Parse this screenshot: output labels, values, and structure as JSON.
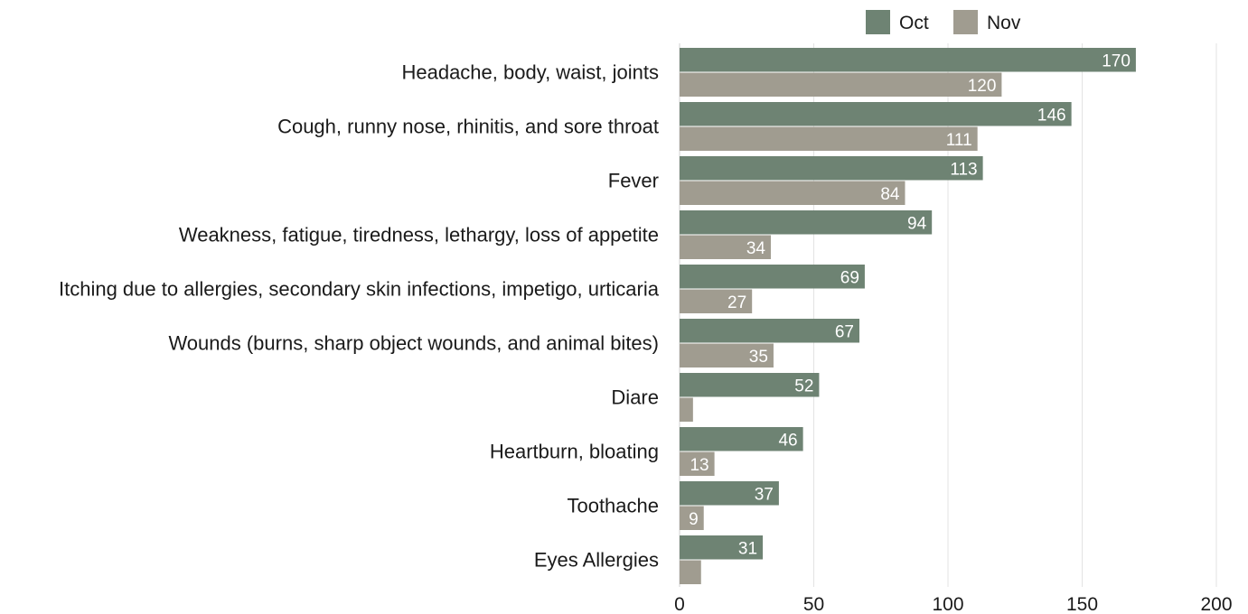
{
  "chart_data": {
    "type": "bar",
    "orientation": "horizontal",
    "categories": [
      "Headache, body, waist, joints",
      "Cough, runny nose, rhinitis, and sore throat",
      "Fever",
      "Weakness, fatigue, tiredness, lethargy, loss of appetite",
      "Itching due to allergies, secondary skin infections, impetigo, urticaria",
      "Wounds (burns, sharp object wounds, and animal bites)",
      "Diare",
      "Heartburn, bloating",
      "Toothache",
      "Eyes Allergies"
    ],
    "series": [
      {
        "name": "Oct",
        "color": "#6e8373",
        "values": [
          170,
          146,
          113,
          94,
          69,
          67,
          52,
          46,
          37,
          31
        ],
        "labels": [
          "170",
          "146",
          "113",
          "94",
          "69",
          "67",
          "52",
          "46",
          "37",
          "31"
        ]
      },
      {
        "name": "Nov",
        "color": "#a09c90",
        "values": [
          120,
          111,
          84,
          34,
          27,
          35,
          5,
          13,
          9,
          8
        ],
        "labels": [
          "120",
          "111",
          "84",
          "34",
          "27",
          "35",
          "",
          "13",
          "9",
          ""
        ]
      }
    ],
    "xticks": [
      "0",
      "50",
      "100",
      "150",
      "200"
    ],
    "xlim": [
      0,
      200
    ],
    "grid": true,
    "legend": "top-right",
    "title": "",
    "xlabel": "",
    "ylabel": ""
  }
}
